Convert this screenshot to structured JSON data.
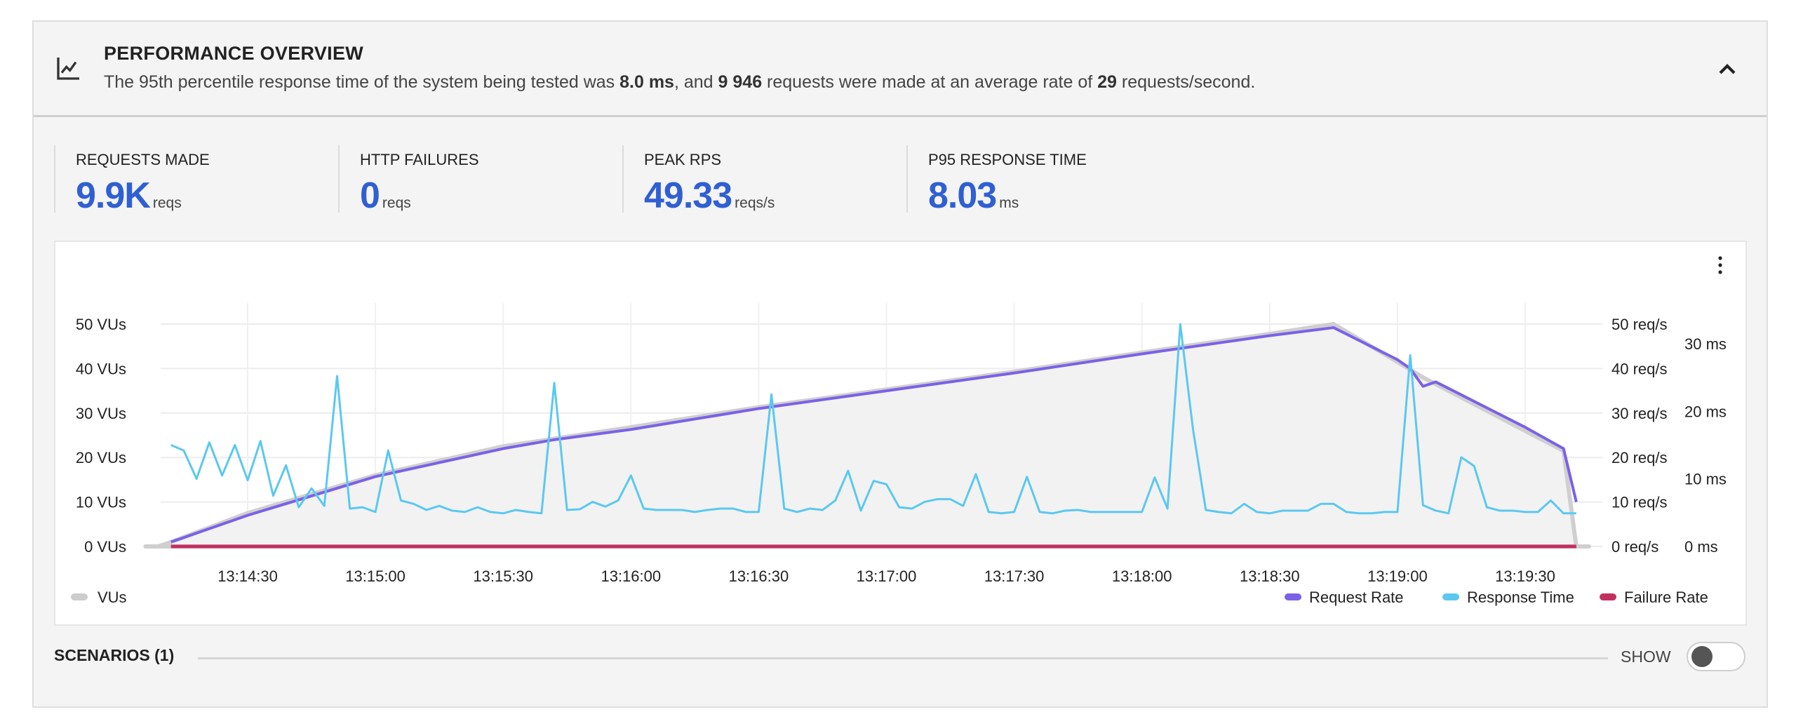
{
  "header": {
    "title": "PERFORMANCE OVERVIEW",
    "summary_parts": [
      "The 95th percentile response time of the system being tested was ",
      "8.0 ms",
      ", and ",
      "9 946",
      " requests were made at an average rate of ",
      "29",
      " requests/second."
    ],
    "icon": "line-chart-icon",
    "collapse_icon": "chevron-up-icon"
  },
  "stats": [
    {
      "label": "REQUESTS MADE",
      "value": "9.9K",
      "unit": "reqs"
    },
    {
      "label": "HTTP FAILURES",
      "value": "0",
      "unit": "reqs"
    },
    {
      "label": "PEAK RPS",
      "value": "49.33",
      "unit": "reqs/s"
    },
    {
      "label": "P95 RESPONSE TIME",
      "value": "8.03",
      "unit": "ms"
    }
  ],
  "colors": {
    "accent": "#2f5fd3",
    "vus": "#cccccc",
    "request_rate": "#7b61e8",
    "response_time": "#5bc8f0",
    "failure_rate": "#c2305f"
  },
  "chart_data": {
    "type": "line",
    "x_tick_labels": [
      "13:14:30",
      "13:15:00",
      "13:15:30",
      "13:16:00",
      "13:16:30",
      "13:17:00",
      "13:17:30",
      "13:18:00",
      "13:18:30",
      "13:19:00",
      "13:19:30"
    ],
    "y_left": {
      "ticks": [
        "0 VUs",
        "10 VUs",
        "20 VUs",
        "30 VUs",
        "40 VUs",
        "50 VUs"
      ],
      "range": [
        0,
        50
      ]
    },
    "y_right_rate": {
      "ticks": [
        "0 req/s",
        "10 req/s",
        "20 req/s",
        "30 req/s",
        "40 req/s",
        "50 req/s"
      ],
      "range": [
        0,
        50
      ]
    },
    "y_right_ms": {
      "ticks": [
        "0 ms",
        "10 ms",
        "20 ms",
        "30 ms"
      ],
      "range": [
        0,
        30
      ]
    },
    "grid": true,
    "legend": {
      "left": [
        "VUs"
      ],
      "right": [
        "Request Rate",
        "Response Time",
        "Failure Rate"
      ]
    },
    "series": [
      {
        "name": "VUs",
        "kind": "area",
        "points": [
          [
            "13:14:06",
            0
          ],
          [
            "13:14:09",
            0
          ],
          [
            "13:14:12",
            1
          ],
          [
            "13:14:30",
            7.5
          ],
          [
            "13:15:00",
            16
          ],
          [
            "13:15:30",
            22.5
          ],
          [
            "13:16:00",
            26.8
          ],
          [
            "13:16:30",
            31.3
          ],
          [
            "13:17:00",
            35.3
          ],
          [
            "13:17:30",
            39.3
          ],
          [
            "13:18:00",
            43.6
          ],
          [
            "13:18:30",
            47.8
          ],
          [
            "13:18:45",
            50
          ],
          [
            "13:19:00",
            41.5
          ],
          [
            "13:19:06",
            38
          ],
          [
            "13:19:30",
            26
          ],
          [
            "13:19:39",
            21.5
          ],
          [
            "13:19:42",
            0
          ],
          [
            "13:19:45",
            0
          ]
        ]
      },
      {
        "name": "Request Rate",
        "points": [
          [
            "13:14:12",
            1
          ],
          [
            "13:14:30",
            7
          ],
          [
            "13:15:00",
            15.7
          ],
          [
            "13:15:30",
            22
          ],
          [
            "13:15:42",
            24
          ],
          [
            "13:16:00",
            26.3
          ],
          [
            "13:16:30",
            31
          ],
          [
            "13:17:00",
            35
          ],
          [
            "13:17:30",
            39
          ],
          [
            "13:18:00",
            43.3
          ],
          [
            "13:18:30",
            47.4
          ],
          [
            "13:18:45",
            49.2
          ],
          [
            "13:19:00",
            42
          ],
          [
            "13:19:03",
            40
          ],
          [
            "13:19:06",
            36
          ],
          [
            "13:19:09",
            37
          ],
          [
            "13:19:30",
            26.8
          ],
          [
            "13:19:39",
            22
          ],
          [
            "13:19:42",
            10
          ]
        ]
      },
      {
        "name": "Response Time",
        "x_start": "13:14:12",
        "x_step_s": 3,
        "values": [
          15,
          14.2,
          10,
          15.4,
          10.5,
          15,
          9.8,
          15.6,
          7.5,
          12,
          5.8,
          8.6,
          6,
          25.2,
          5.6,
          5.8,
          5.1,
          14.2,
          6.8,
          6.3,
          5.4,
          6,
          5.3,
          5.1,
          5.8,
          5.1,
          4.9,
          5.4,
          5.1,
          4.9,
          24.2,
          5.4,
          5.5,
          6.6,
          5.9,
          6.8,
          10.5,
          5.6,
          5.4,
          5.4,
          5.4,
          5.1,
          5.4,
          5.6,
          5.6,
          5.1,
          5.1,
          22.5,
          5.6,
          5.1,
          5.6,
          5.4,
          6.8,
          11.2,
          5.3,
          9.7,
          9.2,
          5.8,
          5.6,
          6.6,
          7,
          7,
          6,
          10.7,
          5.1,
          4.9,
          5.1,
          10.3,
          5.1,
          4.9,
          5.3,
          5.4,
          5.1,
          5.1,
          5.1,
          5.1,
          5.1,
          10.2,
          5.6,
          32.9,
          17.3,
          5.4,
          5.1,
          4.9,
          6.3,
          5.1,
          4.9,
          5.3,
          5.3,
          5.3,
          6.3,
          6.3,
          5.1,
          4.9,
          4.9,
          5.1,
          5.1,
          28.3,
          6.1,
          5.3,
          4.9,
          13.2,
          11.9,
          5.8,
          5.3,
          5.3,
          5.1,
          5.1,
          6.8,
          4.9,
          4.9
        ]
      },
      {
        "name": "Failure Rate",
        "points": [
          [
            "13:14:12",
            0
          ],
          [
            "13:19:42",
            0
          ]
        ]
      }
    ]
  },
  "scenarios": {
    "label": "SCENARIOS (1)",
    "toggle_label": "SHOW",
    "toggle_on": false
  },
  "menu_icon": "kebab-menu-icon"
}
